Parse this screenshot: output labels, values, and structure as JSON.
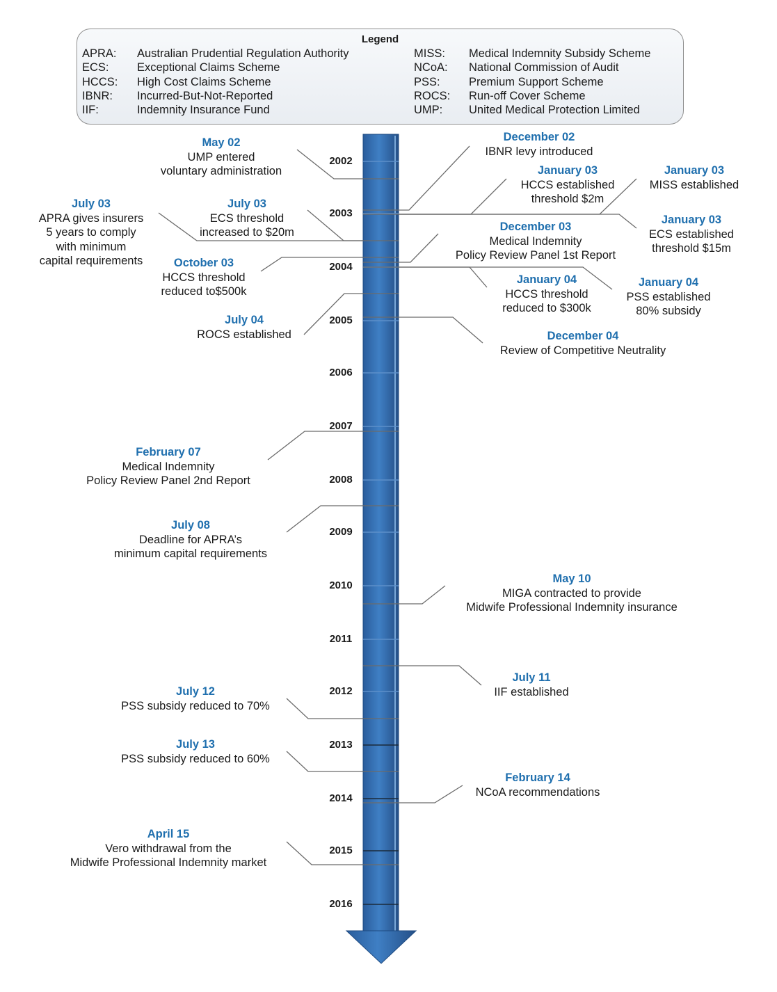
{
  "legend": {
    "title": "Legend",
    "left": [
      {
        "abbr": "APRA:",
        "def": "Australian Prudential Regulation Authority"
      },
      {
        "abbr": "ECS:",
        "def": "Exceptional Claims Scheme"
      },
      {
        "abbr": "HCCS:",
        "def": "High Cost Claims Scheme"
      },
      {
        "abbr": "IBNR:",
        "def": "Incurred-But-Not-Reported"
      },
      {
        "abbr": "IIF:",
        "def": "Indemnity Insurance Fund"
      }
    ],
    "right": [
      {
        "abbr": "MISS:",
        "def": "Medical Indemnity Subsidy Scheme"
      },
      {
        "abbr": "NCoA:",
        "def": "National Commission of Audit"
      },
      {
        "abbr": "PSS:",
        "def": "Premium Support Scheme"
      },
      {
        "abbr": "ROCS:",
        "def": "Run-off Cover Scheme"
      },
      {
        "abbr": "UMP:",
        "def": "United Medical Protection Limited"
      }
    ]
  },
  "years": [
    "2002",
    "2003",
    "2004",
    "2005",
    "2006",
    "2007",
    "2008",
    "2009",
    "2010",
    "2011",
    "2012",
    "2013",
    "2014",
    "2015",
    "2016"
  ],
  "colors": {
    "date": "#1f6fae",
    "arrow": "#2e64a8",
    "connector": "#6b6b6b"
  },
  "events": [
    {
      "date": "May 02",
      "text": "UMP entered\nvoluntary administration"
    },
    {
      "date": "December 02",
      "text": "IBNR levy introduced"
    },
    {
      "date": "January 03",
      "text": "HCCS established\nthreshold $2m"
    },
    {
      "date": "January 03",
      "text": "MISS established"
    },
    {
      "date": "July 03",
      "text": "APRA gives insurers\n5 years to comply\nwith minimum\ncapital requirements"
    },
    {
      "date": "July 03",
      "text": "ECS threshold\nincreased to $20m"
    },
    {
      "date": "January 03",
      "text": "ECS established\nthreshold $15m"
    },
    {
      "date": "December 03",
      "text": "Medical Indemnity\nPolicy Review Panel 1st Report"
    },
    {
      "date": "October 03",
      "text": "HCCS threshold\nreduced to$500k"
    },
    {
      "date": "January 04",
      "text": "HCCS threshold\nreduced to $300k"
    },
    {
      "date": "January 04",
      "text": "PSS established\n80% subsidy"
    },
    {
      "date": "July 04",
      "text": "ROCS established"
    },
    {
      "date": "December 04",
      "text": "Review of Competitive Neutrality"
    },
    {
      "date": "February 07",
      "text": "Medical Indemnity\nPolicy Review Panel 2nd Report"
    },
    {
      "date": "July 08",
      "text": "Deadline for APRA’s\nminimum capital requirements"
    },
    {
      "date": "May 10",
      "text": "MIGA contracted to provide\nMidwife Professional Indemnity insurance"
    },
    {
      "date": "July 11",
      "text": "IIF established"
    },
    {
      "date": "July 12",
      "text": "PSS subsidy reduced to 70%"
    },
    {
      "date": "July 13",
      "text": "PSS subsidy reduced to 60%"
    },
    {
      "date": "February 14",
      "text": "NCoA recommendations"
    },
    {
      "date": "April 15",
      "text": "Vero withdrawal from the\nMidwife Professional Indemnity market"
    }
  ]
}
